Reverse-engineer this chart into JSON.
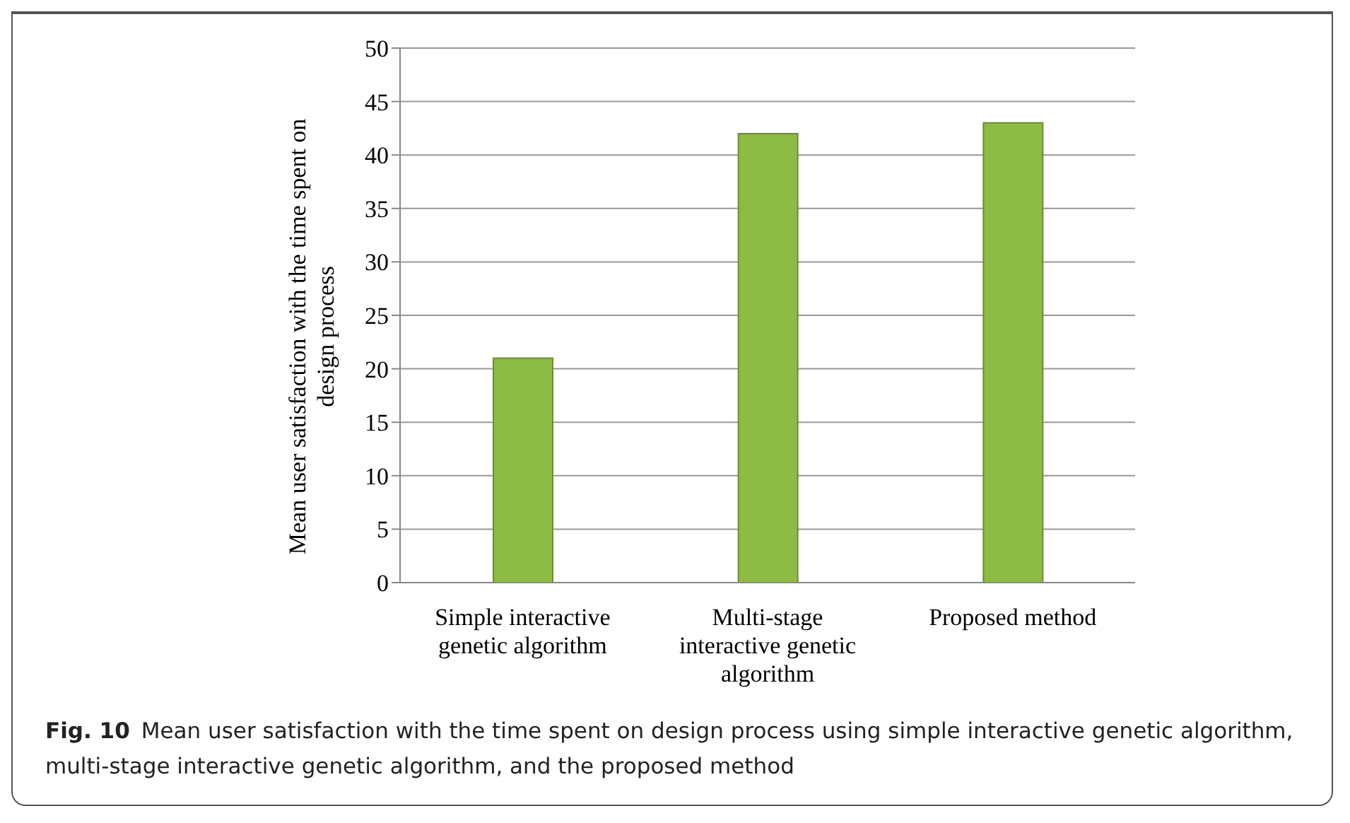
{
  "chart_data": {
    "type": "bar",
    "ylabel": "Mean user satisfaction with the time spent on design process",
    "categories": [
      "Simple interactive genetic algorithm",
      "Multi-stage interactive genetic algorithm",
      "Proposed method"
    ],
    "values": [
      21,
      42,
      43
    ],
    "color": "#8dbb45",
    "ylim": [
      0,
      50
    ],
    "yticks": [
      0,
      5,
      10,
      15,
      20,
      25,
      30,
      35,
      40,
      45,
      50
    ],
    "grid": "y",
    "legend": false,
    "annotations": [
      "Fig. 10",
      "Mean user satisfaction with the time spent on design process using simple interactive genetic algorithm, multi-stage interactive genetic algorithm, and the proposed method"
    ]
  }
}
